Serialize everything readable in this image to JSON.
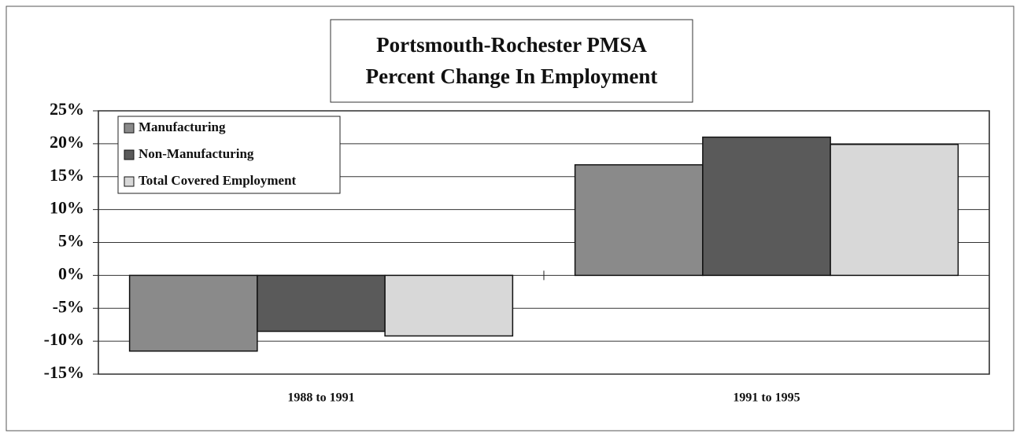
{
  "chart_data": {
    "type": "bar",
    "title": [
      "Portsmouth-Rochester PMSA",
      "Percent Change In Employment"
    ],
    "categories": [
      "1988 to 1991",
      "1991 to 1995"
    ],
    "series": [
      {
        "name": "Manufacturing",
        "color": "#8a8a8a",
        "values": [
          -11.5,
          16.8
        ]
      },
      {
        "name": "Non-Manufacturing",
        "color": "#5a5a5a",
        "values": [
          -8.5,
          21
        ]
      },
      {
        "name": "Total Covered Employment",
        "color": "#d8d8d8",
        "values": [
          -9.2,
          19.9
        ]
      }
    ],
    "ylim": [
      -15,
      25
    ],
    "yticks": [
      {
        "value": -15,
        "label": "-15%"
      },
      {
        "value": -10,
        "label": "-10%"
      },
      {
        "value": -5,
        "label": "-5%"
      },
      {
        "value": 0,
        "label": "0%"
      },
      {
        "value": 5,
        "label": "5%"
      },
      {
        "value": 10,
        "label": "10%"
      },
      {
        "value": 15,
        "label": "15%"
      },
      {
        "value": 20,
        "label": "20%"
      },
      {
        "value": 25,
        "label": "25%"
      }
    ],
    "grid": true,
    "legend": "upper left"
  }
}
